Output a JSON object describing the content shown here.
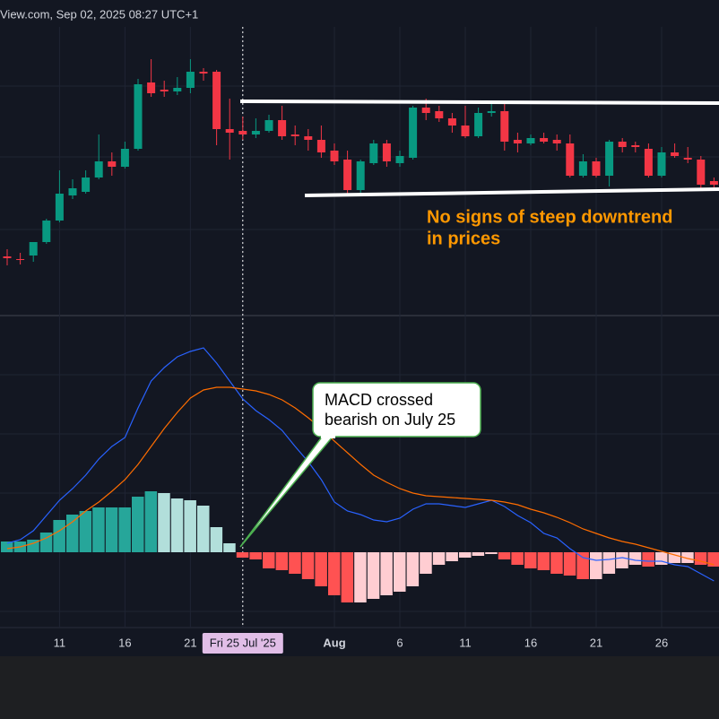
{
  "chart_data": [
    {
      "type": "candlestick",
      "title": "View.com, Sep 02, 2025 08:27 UTC+1",
      "categories": [
        null,
        null,
        null,
        null,
        "11",
        null,
        null,
        null,
        null,
        "16",
        null,
        null,
        null,
        null,
        "21",
        null,
        null,
        null,
        "Fri 25 Jul '25",
        null,
        null,
        null,
        null,
        null,
        null,
        "Aug",
        null,
        null,
        null,
        null,
        "6",
        null,
        null,
        null,
        null,
        "11",
        null,
        null,
        null,
        null,
        "16",
        null,
        null,
        null,
        null,
        "21",
        null,
        null,
        null,
        null,
        "26",
        null,
        null,
        null,
        null
      ],
      "open": [
        54,
        51,
        55,
        70,
        94,
        122,
        126,
        142,
        160,
        154,
        174,
        248,
        240,
        238,
        242,
        260,
        260,
        196,
        194,
        190,
        194,
        206,
        190,
        188,
        184,
        172,
        162,
        128,
        158,
        180,
        158,
        164,
        220,
        216,
        208,
        200,
        188,
        214,
        216,
        184,
        180,
        186,
        184,
        180,
        144,
        160,
        144,
        182,
        178,
        174,
        144,
        170,
        164,
        162,
        138
      ],
      "high": [
        62,
        58,
        68,
        96,
        150,
        140,
        150,
        190,
        170,
        182,
        252,
        274,
        250,
        254,
        274,
        264,
        262,
        230,
        210,
        208,
        212,
        222,
        200,
        196,
        200,
        180,
        172,
        162,
        184,
        184,
        172,
        222,
        230,
        222,
        214,
        222,
        220,
        224,
        224,
        192,
        190,
        192,
        190,
        190,
        168,
        164,
        184,
        186,
        182,
        180,
        176,
        180,
        176,
        166,
        142
      ],
      "low": [
        44,
        45,
        48,
        68,
        92,
        118,
        124,
        140,
        144,
        152,
        172,
        232,
        232,
        234,
        236,
        250,
        178,
        162,
        184,
        186,
        192,
        184,
        178,
        172,
        164,
        156,
        124,
        124,
        156,
        154,
        154,
        162,
        206,
        204,
        192,
        186,
        186,
        210,
        172,
        170,
        178,
        180,
        172,
        142,
        142,
        142,
        132,
        170,
        170,
        142,
        142,
        164,
        158,
        130,
        130
      ],
      "close": [
        52,
        50,
        70,
        94,
        124,
        130,
        142,
        160,
        154,
        174,
        246,
        236,
        238,
        242,
        260,
        258,
        196,
        192,
        190,
        194,
        206,
        188,
        188,
        184,
        170,
        160,
        128,
        160,
        180,
        160,
        166,
        220,
        214,
        208,
        200,
        188,
        214,
        216,
        182,
        180,
        186,
        182,
        180,
        144,
        160,
        144,
        182,
        176,
        176,
        144,
        170,
        166,
        162,
        134,
        134
      ],
      "up_color": "#089981",
      "down_color": "#f23645",
      "ylim": [
        0,
        310
      ],
      "annotation_lines": [
        "No signs of steep downtrend",
        "in prices"
      ]
    },
    {
      "type": "macd",
      "series": [
        {
          "color": "#2962ff",
          "values": [
            10,
            14,
            24,
            41,
            58,
            71,
            86,
            104,
            118,
            128,
            161,
            191,
            206,
            218,
            224,
            228,
            211,
            191,
            171,
            158,
            148,
            136,
            118,
            101,
            81,
            56,
            46,
            42,
            36,
            34,
            38,
            48,
            54,
            54,
            52,
            50,
            54,
            58,
            51,
            41,
            33,
            21,
            16,
            4,
            -6,
            -9,
            -8,
            -6,
            -9,
            -10,
            -10,
            -14,
            -16,
            -24,
            -32
          ]
        },
        {
          "color": "#ff6d00",
          "values": [
            4,
            6,
            10,
            16,
            24,
            34,
            46,
            56,
            68,
            81,
            98,
            118,
            138,
            156,
            172,
            181,
            184,
            184,
            182,
            180,
            176,
            170,
            161,
            150,
            138,
            124,
            111,
            98,
            86,
            78,
            71,
            66,
            63,
            62,
            61,
            60,
            59,
            58,
            56,
            53,
            48,
            44,
            39,
            33,
            26,
            21,
            16,
            12,
            9,
            5,
            1,
            -3,
            -7,
            -10,
            -14
          ]
        }
      ],
      "histogram": [
        12,
        12,
        14,
        22,
        36,
        42,
        46,
        50,
        50,
        50,
        62,
        68,
        66,
        60,
        58,
        52,
        28,
        10,
        -6,
        -8,
        -18,
        -20,
        -24,
        -30,
        -38,
        -48,
        -56,
        -56,
        -52,
        -48,
        -44,
        -38,
        -24,
        -14,
        -10,
        -6,
        -4,
        -2,
        -8,
        -14,
        -18,
        -20,
        -24,
        -26,
        -30,
        -30,
        -24,
        -18,
        -14,
        -16,
        -14,
        -12,
        -12,
        -14,
        -16
      ],
      "hist_colors": {
        "up_rising": "#26a69a",
        "up_falling": "#b2dfdb",
        "down_falling": "#ff5252",
        "down_rising": "#ffcdd2"
      },
      "ylim": [
        -84,
        261
      ],
      "annotation_lines": [
        "MACD crossed",
        "bearish on July 25"
      ]
    }
  ]
}
